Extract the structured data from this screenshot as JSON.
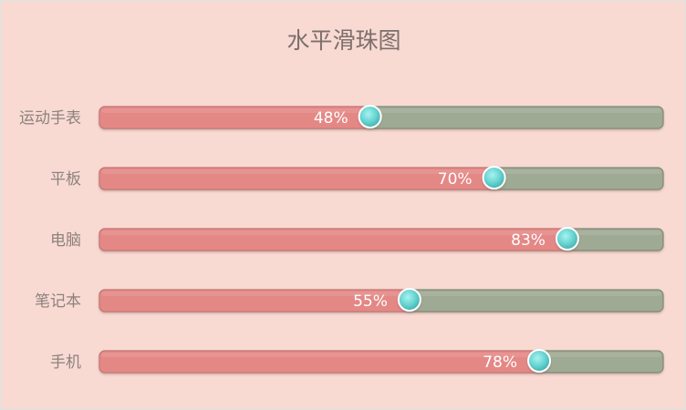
{
  "chart_data": {
    "type": "bar",
    "title": "水平滑珠图",
    "categories": [
      "运动手表",
      "平板",
      "电脑",
      "笔记本",
      "手机"
    ],
    "values": [
      48,
      70,
      83,
      55,
      78
    ],
    "value_labels": [
      "48%",
      "70%",
      "83%",
      "55%",
      "78%"
    ],
    "xlim": [
      0,
      100
    ],
    "grid": false,
    "legend": "none"
  },
  "colors": {
    "background": "#f8dad3",
    "filled": "#e48886",
    "track": "#9faa94",
    "knob": "#63d1ce",
    "title": "#7d6f6b",
    "label": "#8e817c"
  }
}
